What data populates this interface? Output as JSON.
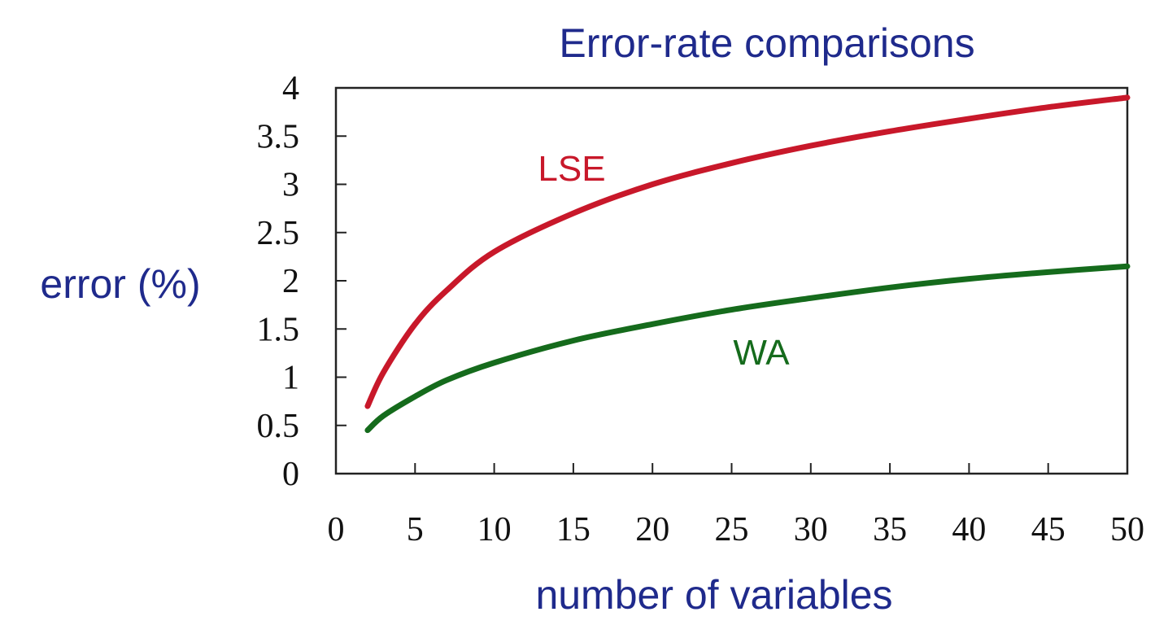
{
  "chart_data": {
    "type": "line",
    "title": "Error-rate comparisons",
    "xlabel": "number of variables",
    "ylabel": "error (%)",
    "xlim": [
      0,
      50
    ],
    "ylim": [
      0,
      4
    ],
    "xticks": [
      "0",
      "5",
      "10",
      "15",
      "20",
      "25",
      "30",
      "35",
      "40",
      "45",
      "50"
    ],
    "yticks": [
      "0",
      "0.5",
      "1",
      "1.5",
      "2",
      "2.5",
      "3",
      "3.5",
      "4"
    ],
    "grid": false,
    "legend": "inline labels",
    "series": [
      {
        "name": "LSE",
        "color": "#c8182a",
        "x": [
          2,
          3,
          5,
          7,
          10,
          15,
          20,
          25,
          30,
          35,
          40,
          45,
          50
        ],
        "y": [
          0.7,
          1.05,
          1.55,
          1.9,
          2.3,
          2.7,
          3.0,
          3.22,
          3.4,
          3.55,
          3.68,
          3.8,
          3.9
        ]
      },
      {
        "name": "WA",
        "color": "#156b1c",
        "x": [
          2,
          3,
          5,
          7,
          10,
          15,
          20,
          25,
          30,
          35,
          40,
          45,
          50
        ],
        "y": [
          0.45,
          0.6,
          0.8,
          0.97,
          1.15,
          1.38,
          1.55,
          1.7,
          1.82,
          1.93,
          2.02,
          2.09,
          2.15
        ]
      }
    ]
  }
}
